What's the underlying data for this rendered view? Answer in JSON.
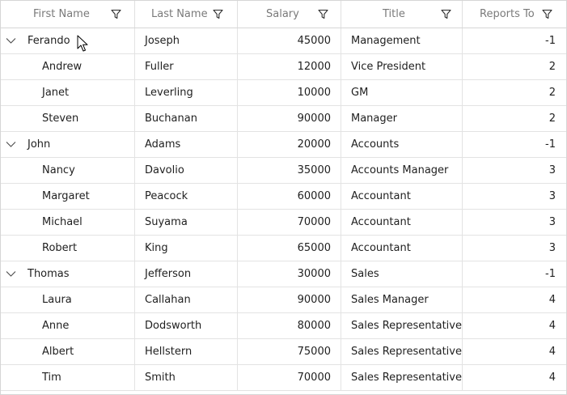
{
  "columns": [
    {
      "label": "First Name"
    },
    {
      "label": "Last Name"
    },
    {
      "label": "Salary"
    },
    {
      "label": "Title"
    },
    {
      "label": "Reports To"
    }
  ],
  "rows": [
    {
      "level": 0,
      "first": "Ferando",
      "last": "Joseph",
      "salary": "45000",
      "title": "Management",
      "reports": "-1"
    },
    {
      "level": 1,
      "first": "Andrew",
      "last": "Fuller",
      "salary": "12000",
      "title": "Vice President",
      "reports": "2"
    },
    {
      "level": 1,
      "first": "Janet",
      "last": "Leverling",
      "salary": "10000",
      "title": "GM",
      "reports": "2"
    },
    {
      "level": 1,
      "first": "Steven",
      "last": "Buchanan",
      "salary": "90000",
      "title": "Manager",
      "reports": "2"
    },
    {
      "level": 0,
      "first": "John",
      "last": "Adams",
      "salary": "20000",
      "title": "Accounts",
      "reports": "-1"
    },
    {
      "level": 1,
      "first": "Nancy",
      "last": "Davolio",
      "salary": "35000",
      "title": "Accounts Manager",
      "reports": "3"
    },
    {
      "level": 1,
      "first": "Margaret",
      "last": "Peacock",
      "salary": "60000",
      "title": "Accountant",
      "reports": "3"
    },
    {
      "level": 1,
      "first": "Michael",
      "last": "Suyama",
      "salary": "70000",
      "title": "Accountant",
      "reports": "3"
    },
    {
      "level": 1,
      "first": "Robert",
      "last": "King",
      "salary": "65000",
      "title": "Accountant",
      "reports": "3"
    },
    {
      "level": 0,
      "first": "Thomas",
      "last": "Jefferson",
      "salary": "30000",
      "title": "Sales",
      "reports": "-1"
    },
    {
      "level": 1,
      "first": "Laura",
      "last": "Callahan",
      "salary": "90000",
      "title": "Sales Manager",
      "reports": "4"
    },
    {
      "level": 1,
      "first": "Anne",
      "last": "Dodsworth",
      "salary": "80000",
      "title": "Sales Representative",
      "reports": "4"
    },
    {
      "level": 1,
      "first": "Albert",
      "last": "Hellstern",
      "salary": "75000",
      "title": "Sales Representative",
      "reports": "4"
    },
    {
      "level": 1,
      "first": "Tim",
      "last": "Smith",
      "salary": "70000",
      "title": "Sales Representative",
      "reports": "4"
    }
  ],
  "icons": {
    "filter": "filter-icon",
    "expander": "chevron-down-icon",
    "cursor": "mouse-pointer-icon"
  },
  "colors": {
    "header_text": "#7a7a7a",
    "grid_line": "#e3e3e3",
    "text": "#1f1f1f"
  }
}
